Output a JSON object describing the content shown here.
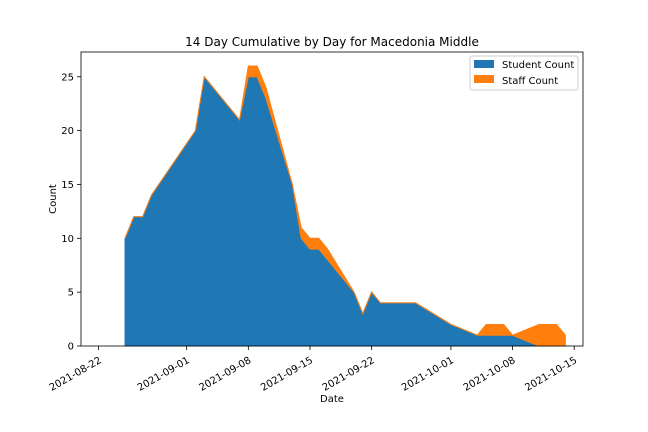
{
  "chart_data": {
    "type": "area",
    "title": "14 Day Cumulative by Day for Macedonia Middle",
    "xlabel": "Date",
    "ylabel": "Count",
    "stacked": true,
    "xlim": [
      "2021-08-20",
      "2021-10-16"
    ],
    "ylim": [
      0,
      27.3
    ],
    "grid": false,
    "legend_position": "top-right",
    "x_ticks": [
      "2021-08-22",
      "2021-09-01",
      "2021-09-08",
      "2021-09-15",
      "2021-09-22",
      "2021-10-01",
      "2021-10-08",
      "2021-10-15"
    ],
    "y_ticks": [
      0,
      5,
      10,
      15,
      20,
      25
    ],
    "x": [
      "2021-08-25",
      "2021-08-26",
      "2021-08-27",
      "2021-08-28",
      "2021-09-02",
      "2021-09-03",
      "2021-09-07",
      "2021-09-08",
      "2021-09-09",
      "2021-09-10",
      "2021-09-13",
      "2021-09-14",
      "2021-09-15",
      "2021-09-16",
      "2021-09-17",
      "2021-09-20",
      "2021-09-21",
      "2021-09-22",
      "2021-09-23",
      "2021-09-27",
      "2021-10-01",
      "2021-10-04",
      "2021-10-05",
      "2021-10-06",
      "2021-10-07",
      "2021-10-08",
      "2021-10-11",
      "2021-10-12",
      "2021-10-13",
      "2021-10-14"
    ],
    "series": [
      {
        "name": "Student Count",
        "color": "#1f77b4",
        "values": [
          10,
          12,
          12,
          14,
          20,
          25,
          21,
          25,
          25,
          23,
          15,
          10,
          9,
          9,
          8,
          5,
          3,
          5,
          4,
          4,
          2,
          1,
          1,
          1,
          1,
          1,
          0,
          0,
          0,
          0
        ]
      },
      {
        "name": "Staff Count",
        "color": "#ff7f0e",
        "values": [
          0,
          0,
          0,
          0,
          0,
          0,
          0,
          1,
          1,
          1,
          0,
          1,
          1,
          1,
          1,
          0,
          0,
          0,
          0,
          0,
          0,
          0,
          1,
          1,
          1,
          0,
          2,
          2,
          2,
          1
        ]
      }
    ]
  }
}
